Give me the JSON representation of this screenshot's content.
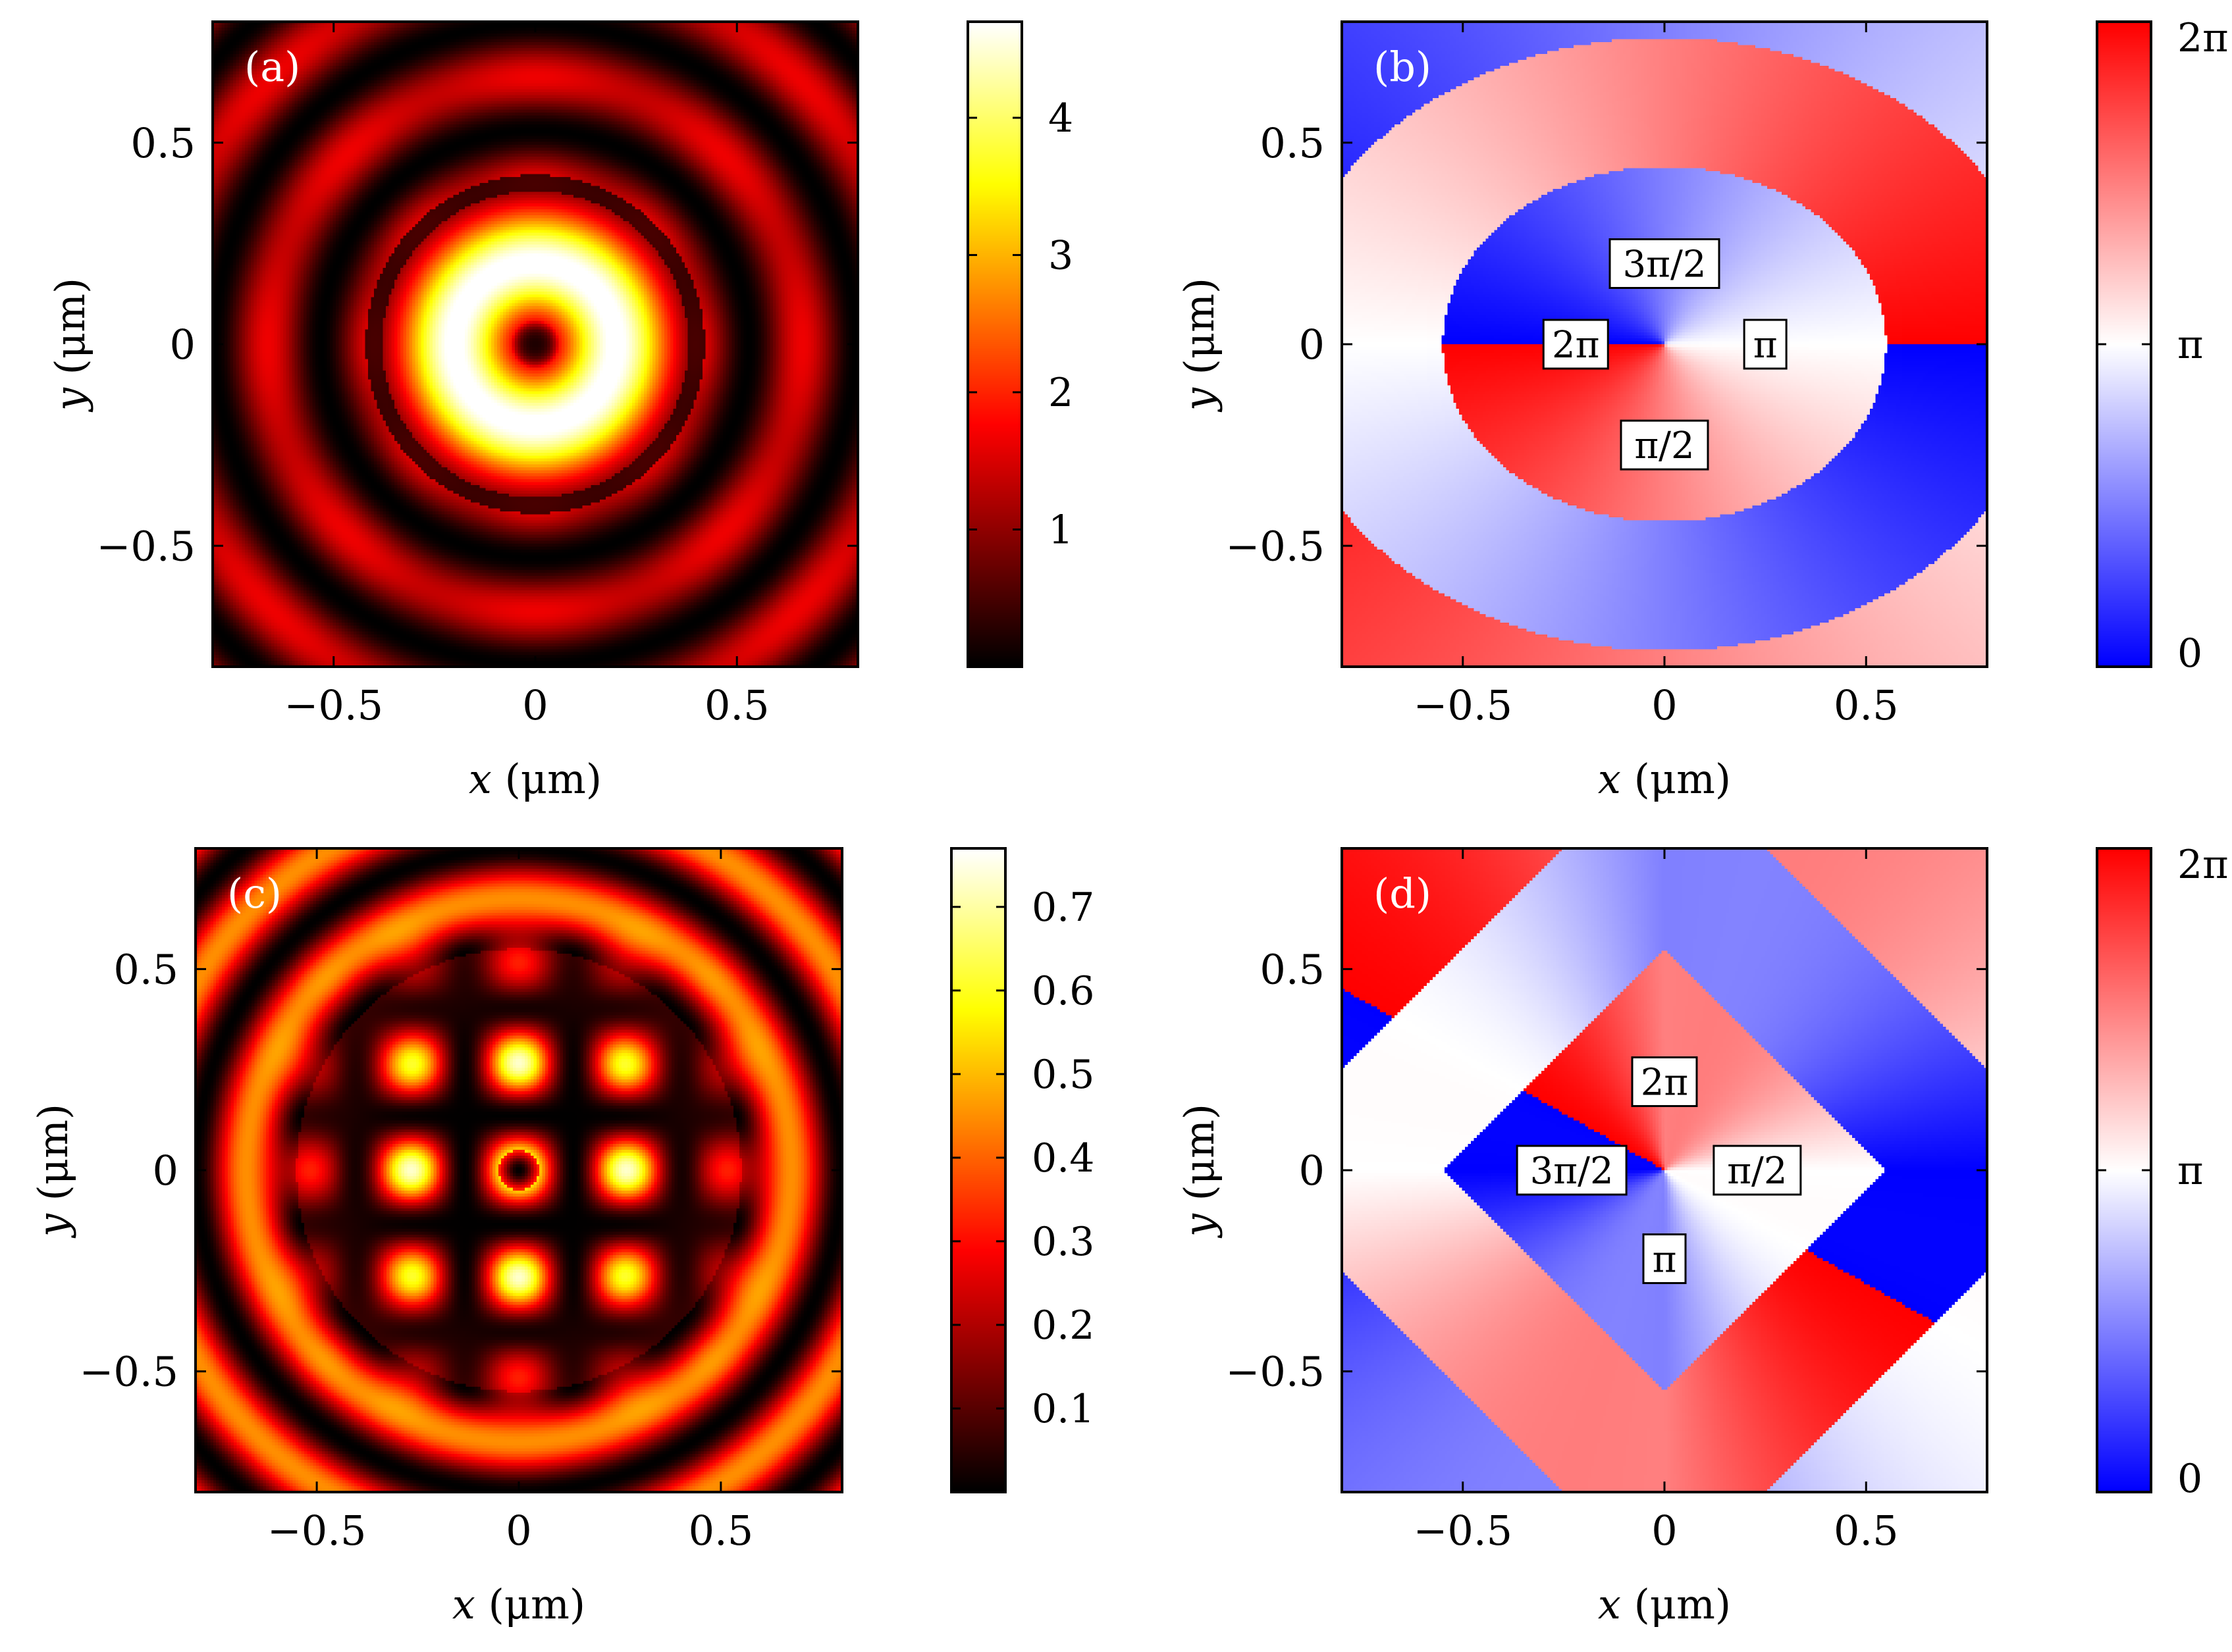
{
  "figure": {
    "xlabel_var": "x",
    "ylabel_var": "y",
    "axis_unit": " (μm)"
  },
  "colors": {
    "axis": "#000000",
    "label_box_bg": "#ffffff",
    "panel_letter": "#ffffff",
    "phase_low": "#0000ff",
    "phase_mid": "#ffffff",
    "phase_high": "#ff0000"
  },
  "chart_data": [
    {
      "id": "a",
      "type": "heatmap",
      "field": "intensity",
      "panel_label": "(a)",
      "xlabel": "x (μm)",
      "ylabel": "y (μm)",
      "xlim": [
        -0.8,
        0.8
      ],
      "ylim": [
        -0.8,
        0.8
      ],
      "xticks": [
        -0.5,
        0,
        0.5
      ],
      "xtick_labels": [
        "−0.5",
        "0",
        "0.5"
      ],
      "yticks": [
        0.5,
        0,
        -0.5
      ],
      "ytick_labels": [
        "0.5",
        "0",
        "−0.5"
      ],
      "colormap": "hot",
      "colorbar": {
        "min": 0,
        "max": 4.7,
        "ticks": [
          1,
          2,
          3,
          4
        ],
        "tick_labels": [
          "1",
          "2",
          "3",
          "4"
        ]
      },
      "features": {
        "central_ring_radius_um": 0.23,
        "peak_value": 4.7,
        "outer_ring_radii_um": [
          0.5,
          0.72
        ]
      },
      "annotations": []
    },
    {
      "id": "b",
      "type": "heatmap",
      "field": "phase",
      "panel_label": "(b)",
      "xlabel": "x (μm)",
      "ylabel": "y (μm)",
      "xlim": [
        -0.8,
        0.8
      ],
      "ylim": [
        -0.8,
        0.8
      ],
      "xticks": [
        -0.5,
        0,
        0.5
      ],
      "xtick_labels": [
        "−0.5",
        "0",
        "0.5"
      ],
      "yticks": [
        0.5,
        0,
        -0.5
      ],
      "ytick_labels": [
        "0.5",
        "0",
        "−0.5"
      ],
      "colormap": "blue-white-red",
      "colorbar": {
        "min": 0,
        "max": 6.283,
        "ticks": [
          0,
          3.1416,
          6.2832
        ],
        "tick_labels": [
          "0",
          "π",
          "2π"
        ]
      },
      "features": {
        "vortex_charge": -1,
        "inner_boundary_radius_um": 0.44
      },
      "annotations": [
        {
          "text": "3π/2",
          "x": 0.0,
          "y": 0.2
        },
        {
          "text": "2π",
          "x": -0.22,
          "y": 0.0
        },
        {
          "text": "π",
          "x": 0.25,
          "y": 0.0
        },
        {
          "text": "π/2",
          "x": 0.0,
          "y": -0.25
        }
      ]
    },
    {
      "id": "c",
      "type": "heatmap",
      "field": "intensity",
      "panel_label": "(c)",
      "xlabel": "x (μm)",
      "ylabel": "y (μm)",
      "xlim": [
        -0.8,
        0.8
      ],
      "ylim": [
        -0.8,
        0.8
      ],
      "xticks": [
        -0.5,
        0,
        0.5
      ],
      "xtick_labels": [
        "−0.5",
        "0",
        "0.5"
      ],
      "yticks": [
        0.5,
        0,
        -0.5
      ],
      "ytick_labels": [
        "0.5",
        "0",
        "−0.5"
      ],
      "colormap": "hot",
      "colorbar": {
        "min": 0,
        "max": 0.77,
        "ticks": [
          0.1,
          0.2,
          0.3,
          0.4,
          0.5,
          0.6,
          0.7
        ],
        "tick_labels": [
          "0.1",
          "0.2",
          "0.3",
          "0.4",
          "0.5",
          "0.6",
          "0.7"
        ]
      },
      "features": {
        "pattern": "3x3 lobes with central null",
        "peak_value": 0.77
      },
      "annotations": []
    },
    {
      "id": "d",
      "type": "heatmap",
      "field": "phase",
      "panel_label": "(d)",
      "xlabel": "x (μm)",
      "ylabel": "y (μm)",
      "xlim": [
        -0.8,
        0.8
      ],
      "ylim": [
        -0.8,
        0.8
      ],
      "xticks": [
        -0.5,
        0,
        0.5
      ],
      "xtick_labels": [
        "−0.5",
        "0",
        "0.5"
      ],
      "yticks": [
        0.5,
        0,
        -0.5
      ],
      "ytick_labels": [
        "0.5",
        "0",
        "−0.5"
      ],
      "colormap": "blue-white-red",
      "colorbar": {
        "min": 0,
        "max": 6.283,
        "ticks": [
          0,
          3.1416,
          6.2832
        ],
        "tick_labels": [
          "0",
          "π",
          "2π"
        ]
      },
      "features": {
        "vortex_charge": 1,
        "quadrant_structure": true
      },
      "annotations": [
        {
          "text": "2π",
          "x": 0.0,
          "y": 0.22
        },
        {
          "text": "3π/2",
          "x": -0.23,
          "y": 0.0
        },
        {
          "text": "π/2",
          "x": 0.23,
          "y": 0.0
        },
        {
          "text": "π",
          "x": 0.0,
          "y": -0.22
        }
      ]
    }
  ]
}
